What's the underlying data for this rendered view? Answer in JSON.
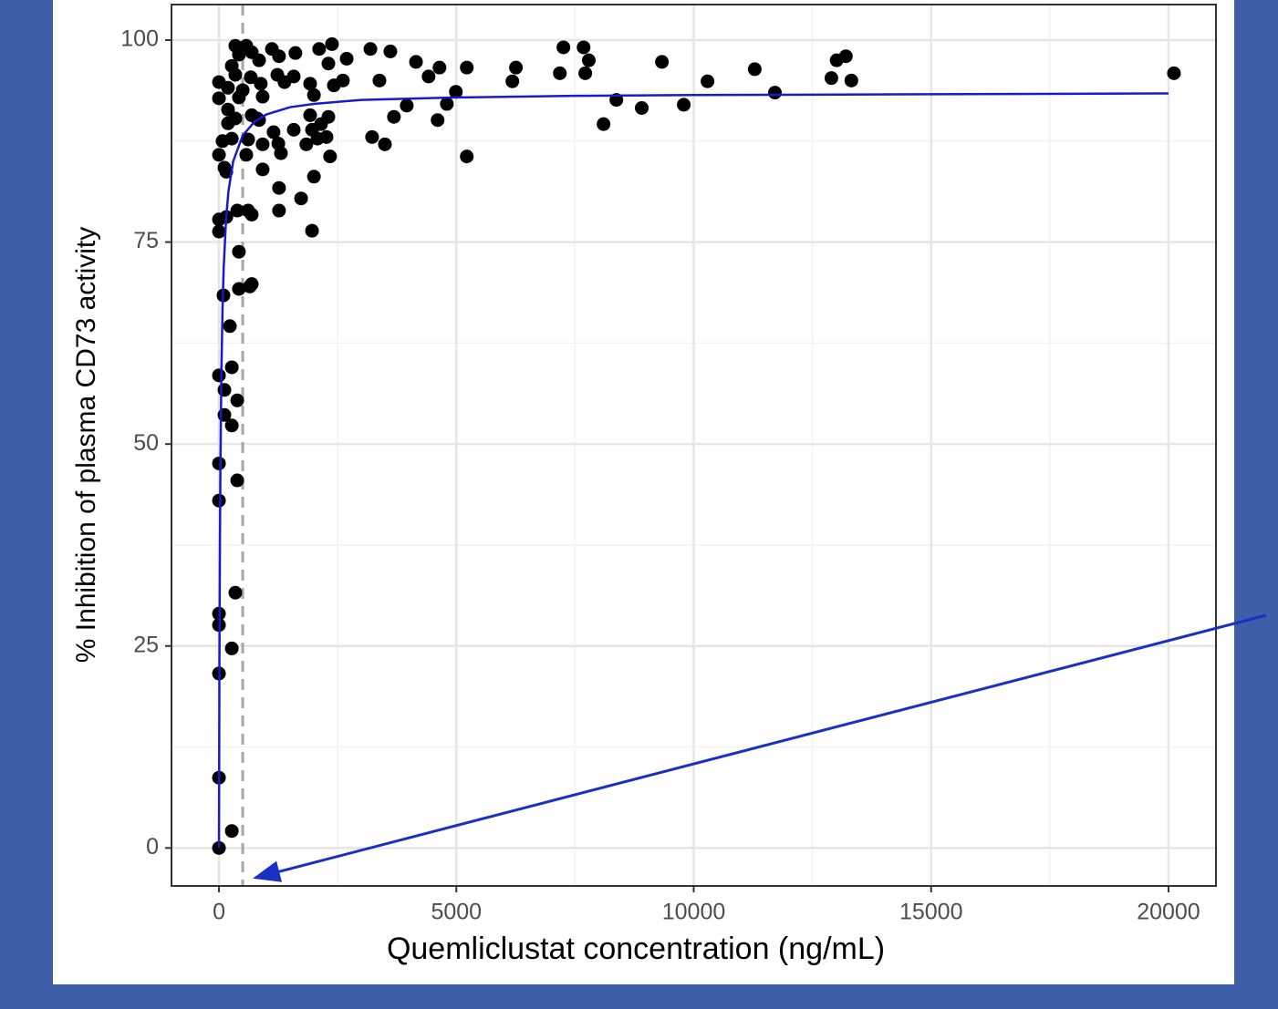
{
  "chart_data": {
    "type": "scatter",
    "xlabel": "Quemliclustat concentration (ng/mL)",
    "ylabel": "% Inhibition of plasma CD73 activity",
    "xlim": [
      -1000,
      21000
    ],
    "ylim": [
      -4.7,
      104.4
    ],
    "xticks": [
      0,
      5000,
      10000,
      15000,
      20000
    ],
    "yticks": [
      0,
      25,
      50,
      75,
      100
    ],
    "x_minor_grid": [
      2500,
      7500,
      12500,
      17500
    ],
    "y_minor_grid": [
      12.5,
      37.5,
      62.5,
      87.5
    ],
    "grid": true,
    "reference_x": 500,
    "reference_color": "#a6a6a6",
    "points": {
      "color": "#000000",
      "x": [
        0,
        0,
        0,
        0,
        0,
        0,
        0,
        0,
        0,
        0,
        0,
        0,
        0,
        270,
        270,
        345,
        385,
        270,
        115,
        115,
        385,
        270,
        230,
        95,
        420,
        650,
        690,
        420,
        155,
        385,
        615,
        690,
        155,
        115,
        75,
        270,
        615,
        190,
        345,
        690,
        845,
        190,
        420,
        190,
        500,
        345,
        670,
        270,
        845,
        420,
        345,
        575,
        690,
        575,
        920,
        920,
        805,
        920,
        880,
        1115,
        1265,
        1610,
        1230,
        1380,
        1575,
        1150,
        1250,
        1305,
        1265,
        1265,
        1730,
        1575,
        1840,
        1920,
        1960,
        2000,
        1960,
        2075,
        2150,
        2000,
        1920,
        2110,
        2305,
        2380,
        2265,
        2305,
        2340,
        2420,
        2690,
        2610,
        3190,
        3380,
        3225,
        3495,
        3610,
        3685,
        3955,
        4150,
        4415,
        4645,
        4605,
        4800,
        4990,
        5220,
        5220,
        6180,
        6255,
        7180,
        7255,
        7680,
        7790,
        7715,
        8100,
        8370,
        8905,
        9330,
        9790,
        10290,
        11285,
        11710,
        12900,
        13010,
        13205,
        13320,
        20115
      ],
      "y": [
        0,
        8.7,
        21.6,
        27.6,
        29,
        43,
        47.6,
        58.5,
        76.3,
        77.8,
        85.8,
        92.8,
        94.8,
        2.1,
        24.7,
        31.6,
        45.5,
        52.3,
        53.6,
        56.7,
        55.4,
        59.5,
        64.6,
        68.4,
        69.2,
        69.5,
        69.8,
        73.8,
        78.1,
        78.9,
        78.9,
        78.4,
        83.7,
        84.2,
        87.5,
        87.8,
        87.7,
        89.7,
        90.3,
        90.7,
        90.1,
        91.4,
        92.9,
        94.1,
        93.8,
        95.7,
        95.4,
        96.8,
        97.5,
        98.2,
        99.3,
        99.3,
        98.5,
        85.8,
        84,
        87.1,
        90.3,
        93,
        94.6,
        98.9,
        98,
        98.4,
        95.7,
        94.8,
        95.5,
        88.6,
        87.2,
        86,
        81.7,
        78.9,
        80.4,
        88.9,
        87.1,
        90.7,
        88.9,
        83.1,
        76.4,
        87.8,
        89.6,
        93.2,
        94.6,
        98.9,
        97.1,
        99.5,
        88,
        90.5,
        85.6,
        94.4,
        97.7,
        95,
        98.9,
        95,
        88,
        87.1,
        98.6,
        90.5,
        91.9,
        97.3,
        95.5,
        96.6,
        90.1,
        92.1,
        93.6,
        96.6,
        85.6,
        94.9,
        96.6,
        95.9,
        99.1,
        99.1,
        97.5,
        95.9,
        89.6,
        92.6,
        91.6,
        97.3,
        92,
        94.9,
        96.4,
        93.5,
        95.3,
        97.5,
        98,
        95,
        95.9
      ]
    },
    "fit": {
      "color": "#1a1acc",
      "x": [
        0,
        10,
        20,
        30,
        50,
        75,
        100,
        150,
        200,
        300,
        500,
        750,
        1000,
        1500,
        2000,
        3000,
        5000,
        7500,
        10000,
        15000,
        20000
      ],
      "y": [
        0,
        23.4,
        37.4,
        46.75,
        58.4,
        66.8,
        71.9,
        77.9,
        81.3,
        85,
        88.2,
        89.9,
        90.8,
        91.7,
        92.1,
        92.6,
        92.9,
        93.1,
        93.2,
        93.3,
        93.4
      ]
    }
  }
}
